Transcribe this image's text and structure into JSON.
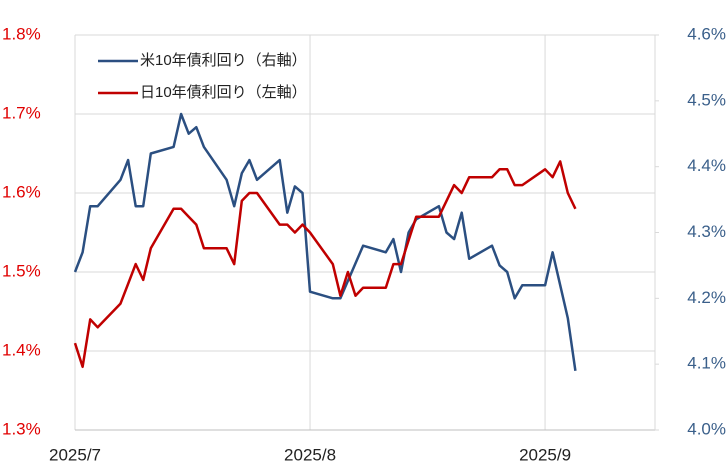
{
  "chart_data": {
    "type": "line",
    "xlim": [
      0,
      76.5
    ],
    "xticks": [
      {
        "value": 0,
        "label": "2025/7"
      },
      {
        "value": 31,
        "label": "2025/8"
      },
      {
        "value": 62,
        "label": "2025/9"
      }
    ],
    "ylim": [
      1.3,
      1.8
    ],
    "yticks": [
      {
        "value": 1.3,
        "label": "1.3%"
      },
      {
        "value": 1.4,
        "label": "1.4%"
      },
      {
        "value": 1.5,
        "label": "1.5%"
      },
      {
        "value": 1.6,
        "label": "1.6%"
      },
      {
        "value": 1.7,
        "label": "1.7%"
      },
      {
        "value": 1.8,
        "label": "1.8%"
      }
    ],
    "y2lim": [
      4.0,
      4.6
    ],
    "y2ticks": [
      {
        "value": 4.0,
        "label": "4.0%"
      },
      {
        "value": 4.1,
        "label": "4.1%"
      },
      {
        "value": 4.2,
        "label": "4.2%"
      },
      {
        "value": 4.3,
        "label": "4.3%"
      },
      {
        "value": 4.4,
        "label": "4.4%"
      },
      {
        "value": 4.5,
        "label": "4.5%"
      },
      {
        "value": 4.6,
        "label": "4.6%"
      }
    ],
    "ytick_color": "#e00000",
    "y2tick_color": "#3a5f8a",
    "grid": true,
    "legend": "upper left",
    "series": [
      {
        "name": "米10年債利回り（右軸）",
        "color": "#2b4f81",
        "axis": "y2",
        "x": [
          0,
          1,
          2,
          3,
          6,
          7,
          8,
          9,
          10,
          13,
          14,
          15,
          16,
          17,
          20,
          21,
          22,
          23,
          24,
          27,
          28,
          29,
          30,
          31,
          34,
          35,
          38,
          41,
          42,
          43,
          44,
          45,
          48,
          49,
          50,
          51,
          52,
          55,
          56,
          57,
          58,
          59,
          62,
          63,
          64,
          65,
          66
        ],
        "values": [
          4.24,
          4.27,
          4.34,
          4.34,
          4.38,
          4.41,
          4.34,
          4.34,
          4.42,
          4.43,
          4.48,
          4.45,
          4.46,
          4.43,
          4.38,
          4.34,
          4.39,
          4.41,
          4.38,
          4.41,
          4.33,
          4.37,
          4.36,
          4.21,
          4.2,
          4.2,
          4.28,
          4.27,
          4.29,
          4.24,
          4.3,
          4.32,
          4.34,
          4.3,
          4.29,
          4.33,
          4.26,
          4.28,
          4.25,
          4.24,
          4.2,
          4.22,
          4.22,
          4.27,
          4.22,
          4.17,
          4.09
        ]
      },
      {
        "name": "日10年債利回り（左軸）",
        "color": "#c00000",
        "x": [
          0,
          1,
          2,
          3,
          6,
          8,
          9,
          10,
          13,
          14,
          15,
          16,
          17,
          20,
          21,
          22,
          23,
          24,
          27,
          28,
          29,
          30,
          31,
          34,
          35,
          36,
          37,
          38,
          41,
          42,
          43,
          45,
          48,
          49,
          50,
          51,
          52,
          55,
          56,
          57,
          58,
          59,
          62,
          63,
          64,
          65,
          66
        ],
        "values": [
          1.41,
          1.38,
          1.44,
          1.43,
          1.46,
          1.51,
          1.49,
          1.53,
          1.58,
          1.58,
          1.57,
          1.56,
          1.53,
          1.53,
          1.51,
          1.59,
          1.6,
          1.6,
          1.56,
          1.56,
          1.55,
          1.56,
          1.55,
          1.51,
          1.47,
          1.5,
          1.47,
          1.48,
          1.48,
          1.51,
          1.51,
          1.57,
          1.57,
          1.59,
          1.61,
          1.6,
          1.62,
          1.62,
          1.63,
          1.63,
          1.61,
          1.61,
          1.63,
          1.62,
          1.64,
          1.6,
          1.58
        ]
      }
    ]
  }
}
